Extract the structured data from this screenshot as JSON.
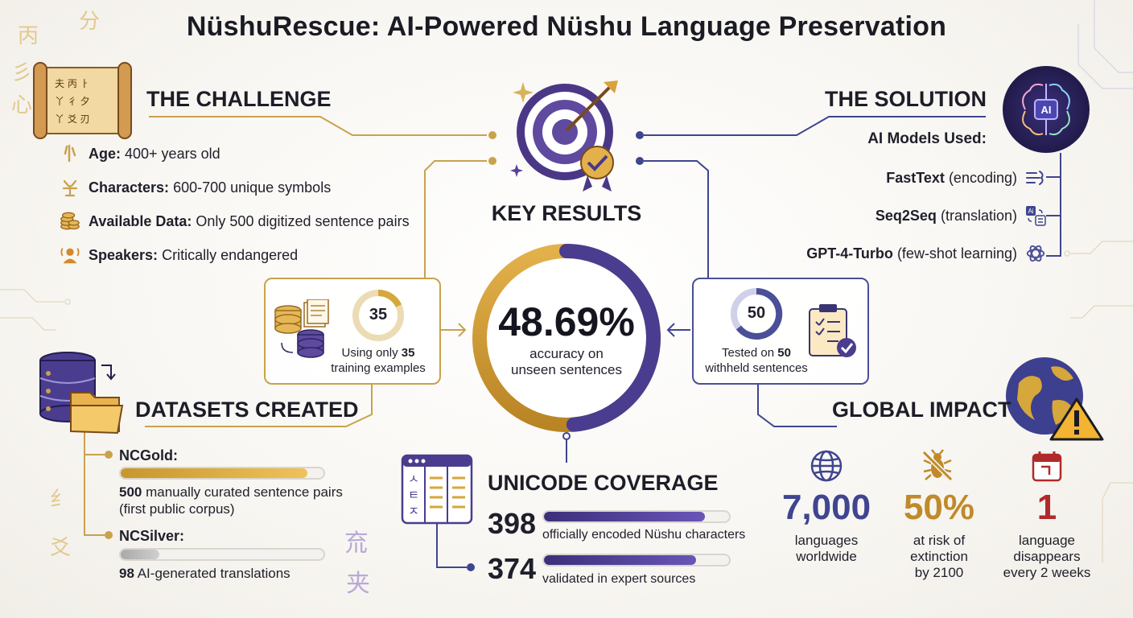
{
  "title": "NüshuRescue: AI-Powered Nüshu Language Preservation",
  "challenge": {
    "heading": "THE CHALLENGE",
    "items": [
      {
        "label": "Age:",
        "value": "400+ years old",
        "icon": "nushu-glyph-icon"
      },
      {
        "label": "Characters:",
        "value": "600-700 unique symbols",
        "icon": "nushu-character-icon"
      },
      {
        "label": "Available Data:",
        "value": "Only 500 digitized sentence pairs",
        "icon": "coins-stack-icon"
      },
      {
        "label": "Speakers:",
        "value": "Critically endangered",
        "icon": "speaker-person-icon"
      }
    ]
  },
  "solution": {
    "heading": "THE SOLUTION",
    "subheading": "AI Models Used:",
    "ai_badge": "AI",
    "models": [
      {
        "name": "FastText",
        "desc": "(encoding)",
        "icon": "encoding-icon"
      },
      {
        "name": "Seq2Seq",
        "desc": "(translation)",
        "icon": "translate-icon"
      },
      {
        "name": "GPT-4-Turbo",
        "desc": "(few-shot learning)",
        "icon": "openai-knot-icon"
      }
    ]
  },
  "key_results": {
    "heading": "KEY RESULTS",
    "accuracy": "48.69%",
    "accuracy_label_1": "accuracy on",
    "accuracy_label_2": "unseen sentences",
    "accuracy_fraction": 0.4869,
    "training": {
      "count": "35",
      "text_prefix": "Using only",
      "text_bold": "35",
      "text_suffix": "training examples"
    },
    "testing": {
      "count": "50",
      "text_prefix": "Tested on",
      "text_bold": "50",
      "text_suffix": "withheld sentences"
    }
  },
  "datasets": {
    "heading": "DATASETS CREATED",
    "items": [
      {
        "name": "NCGold:",
        "count": "500",
        "desc_1": "manually curated sentence pairs",
        "desc_2": "(first public corpus)",
        "fill": 0.92,
        "color": "#d6a73a"
      },
      {
        "name": "NCSilver:",
        "count": "98",
        "desc_1": "AI-generated translations",
        "desc_2": "",
        "fill": 0.19,
        "color": "#bdbdbd"
      }
    ]
  },
  "unicode": {
    "heading": "UNICODE COVERAGE",
    "items": [
      {
        "count": "398",
        "desc": "officially encoded Nüshu characters",
        "fill": 0.87
      },
      {
        "count": "374",
        "desc": "validated in expert sources",
        "fill": 0.82
      }
    ],
    "table_glyphs": [
      "ㅅ",
      "ㅌ",
      "ㅈ"
    ]
  },
  "impact": {
    "heading": "GLOBAL IMPACT",
    "stats": [
      {
        "value": "7,000",
        "lines": [
          "languages",
          "worldwide"
        ],
        "color": "#3f4590",
        "icon": "globe-grid-icon"
      },
      {
        "value": "50%",
        "lines": [
          "at risk of",
          "extinction",
          "by 2100"
        ],
        "color": "#c08a2a",
        "icon": "crossed-insect-icon"
      },
      {
        "value": "1",
        "lines": [
          "language",
          "disappears",
          "every 2 weeks"
        ],
        "color": "#b02a2a",
        "icon": "calendar-icon"
      }
    ]
  },
  "colors": {
    "gold": "#c9a24d",
    "navy": "#3f4590",
    "purple": "#5b3f99",
    "red": "#b02a2a"
  },
  "decor": {
    "left_glyphs": [
      "丙",
      "分",
      "彡",
      "心",
      "纟",
      "爻"
    ],
    "right_glyphs": [
      "㐬",
      "夹"
    ]
  }
}
